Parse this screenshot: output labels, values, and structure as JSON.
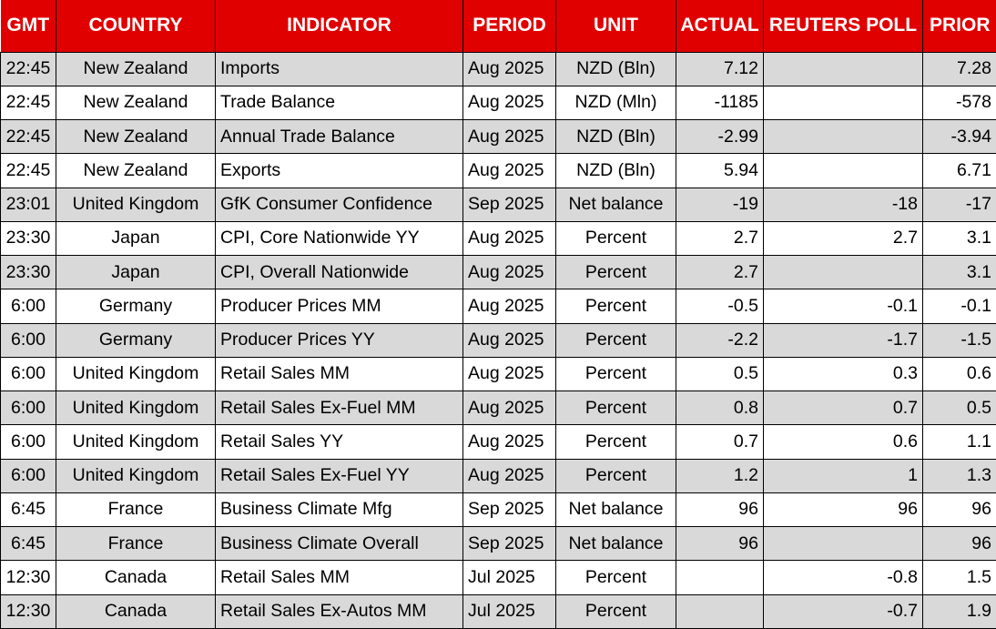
{
  "colors": {
    "header_bg": "#e00000",
    "header_text": "#ffffff",
    "row_stripe": "#d9d9d9",
    "row_white": "#ffffff",
    "grid_line": "#000000",
    "body_text": "#000000"
  },
  "chart_data": {
    "type": "table",
    "title": "Economic calendar / indicator release table",
    "columns": [
      "GMT",
      "COUNTRY",
      "INDICATOR",
      "PERIOD",
      "UNIT",
      "ACTUAL",
      "REUTERS POLL",
      "PRIOR"
    ],
    "rows": [
      [
        "22:45",
        "New Zealand",
        "Imports",
        "Aug 2025",
        "NZD (Bln)",
        "7.12",
        "",
        "7.28"
      ],
      [
        "22:45",
        "New Zealand",
        "Trade Balance",
        "Aug 2025",
        "NZD (Mln)",
        "-1185",
        "",
        "-578"
      ],
      [
        "22:45",
        "New Zealand",
        "Annual Trade Balance",
        "Aug 2025",
        "NZD (Bln)",
        "-2.99",
        "",
        "-3.94"
      ],
      [
        "22:45",
        "New Zealand",
        "Exports",
        "Aug 2025",
        "NZD (Bln)",
        "5.94",
        "",
        "6.71"
      ],
      [
        "23:01",
        "United Kingdom",
        "GfK Consumer Confidence",
        "Sep 2025",
        "Net balance",
        "-19",
        "-18",
        "-17"
      ],
      [
        "23:30",
        "Japan",
        "CPI, Core Nationwide YY",
        "Aug 2025",
        "Percent",
        "2.7",
        "2.7",
        "3.1"
      ],
      [
        "23:30",
        "Japan",
        "CPI, Overall Nationwide",
        "Aug 2025",
        "Percent",
        "2.7",
        "",
        "3.1"
      ],
      [
        "6:00",
        "Germany",
        "Producer Prices MM",
        "Aug 2025",
        "Percent",
        "-0.5",
        "-0.1",
        "-0.1"
      ],
      [
        "6:00",
        "Germany",
        "Producer Prices YY",
        "Aug 2025",
        "Percent",
        "-2.2",
        "-1.7",
        "-1.5"
      ],
      [
        "6:00",
        "United Kingdom",
        "Retail Sales MM",
        "Aug 2025",
        "Percent",
        "0.5",
        "0.3",
        "0.6"
      ],
      [
        "6:00",
        "United Kingdom",
        "Retail Sales Ex-Fuel MM",
        "Aug 2025",
        "Percent",
        "0.8",
        "0.7",
        "0.5"
      ],
      [
        "6:00",
        "United Kingdom",
        "Retail Sales YY",
        "Aug 2025",
        "Percent",
        "0.7",
        "0.6",
        "1.1"
      ],
      [
        "6:00",
        "United Kingdom",
        "Retail Sales Ex-Fuel YY",
        "Aug 2025",
        "Percent",
        "1.2",
        "1",
        "1.3"
      ],
      [
        "6:45",
        "France",
        "Business Climate Mfg",
        "Sep 2025",
        "Net balance",
        "96",
        "96",
        "96"
      ],
      [
        "6:45",
        "France",
        "Business Climate Overall",
        "Sep 2025",
        "Net balance",
        "96",
        "",
        "96"
      ],
      [
        "12:30",
        "Canada",
        "Retail Sales MM",
        "Jul 2025",
        "Percent",
        "",
        "-0.8",
        "1.5"
      ],
      [
        "12:30",
        "Canada",
        "Retail Sales Ex-Autos MM",
        "Jul 2025",
        "Percent",
        "",
        "-0.7",
        "1.9"
      ]
    ]
  }
}
